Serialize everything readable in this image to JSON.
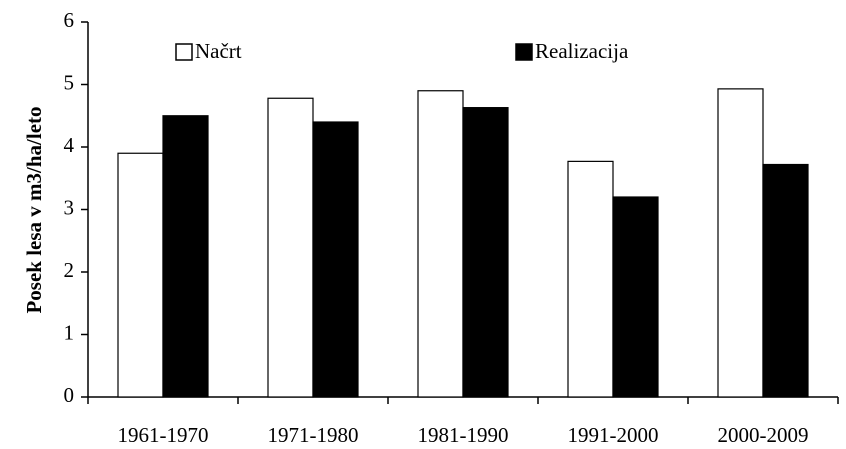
{
  "chart_data": {
    "type": "bar",
    "ylabel": "Posek lesa v m3/ha/leto",
    "categories": [
      "1961-1970",
      "1971-1980",
      "1981-1990",
      "1991-2000",
      "2000-2009"
    ],
    "series": [
      {
        "name": "Načrt",
        "color": "#ffffff",
        "values": [
          3.9,
          4.78,
          4.9,
          3.77,
          4.93
        ]
      },
      {
        "name": "Realizacija",
        "color": "#000000",
        "values": [
          4.5,
          4.4,
          4.63,
          3.2,
          3.72
        ]
      }
    ],
    "ylim": [
      0,
      6
    ],
    "yticks": [
      0,
      1,
      2,
      3,
      4,
      5,
      6
    ],
    "grid": false,
    "legend": "top"
  }
}
